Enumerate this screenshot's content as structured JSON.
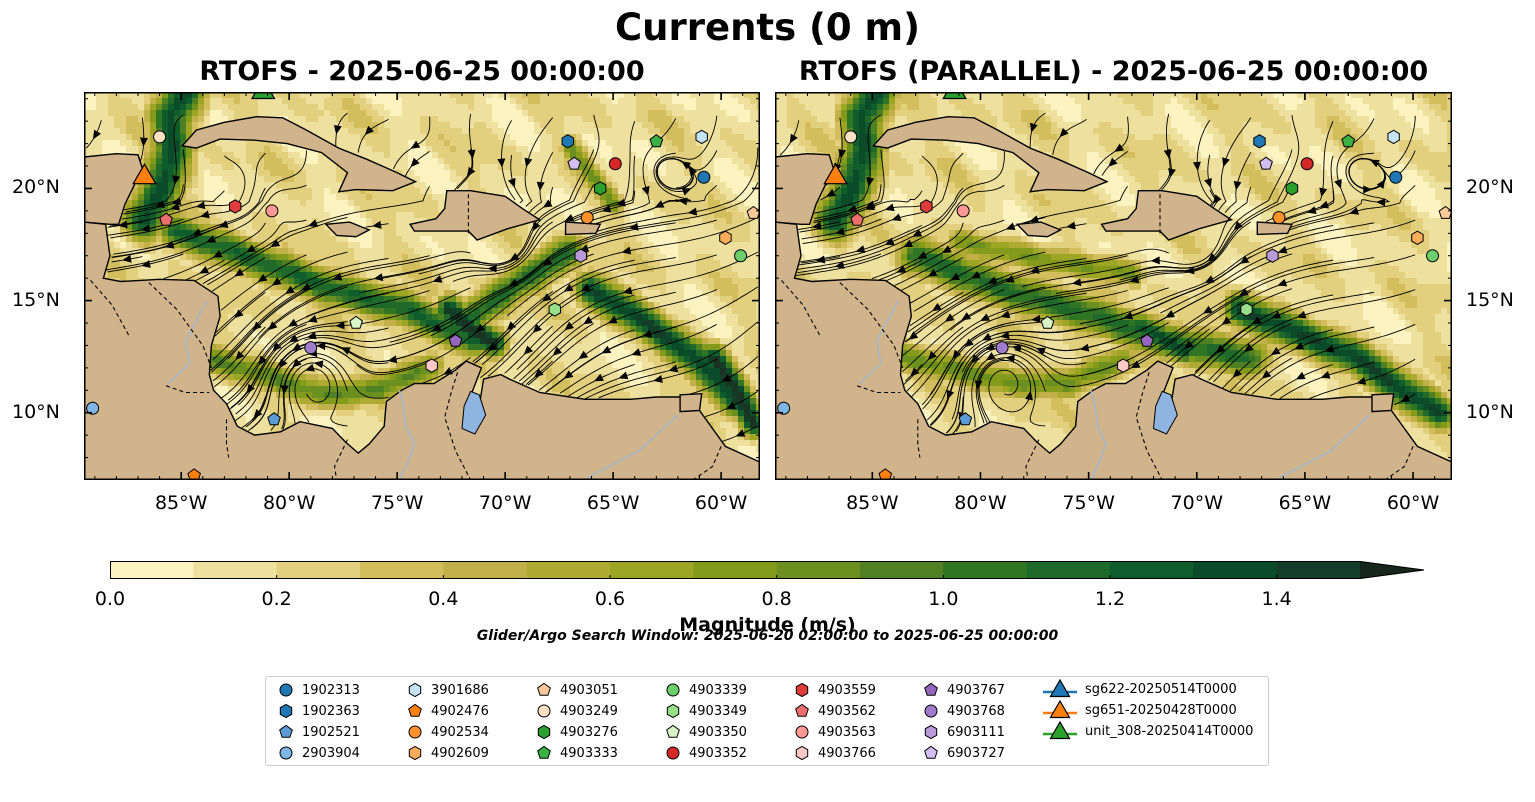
{
  "title": "Currents (0 m)",
  "panels": [
    {
      "title": "RTOFS - 2025-06-25 00:00:00"
    },
    {
      "title": "RTOFS (PARALLEL) - 2025-06-25 00:00:00"
    }
  ],
  "axes": {
    "lon_ticks": [
      "85°W",
      "80°W",
      "75°W",
      "70°W",
      "65°W",
      "60°W"
    ],
    "lat_ticks": [
      "20°N",
      "15°N",
      "10°N"
    ],
    "lon_range": [
      -89.5,
      -58.2
    ],
    "lat_range": [
      7,
      24.3
    ]
  },
  "colors": {
    "land": "#d2b48c",
    "lake": "#90b4e0",
    "river": "#a3b8cc",
    "streamline": "#000000",
    "colormap": [
      "#fcf3c0",
      "#eee1a0",
      "#e2d07e",
      "#d2be5d",
      "#c2b14a",
      "#aeaa32",
      "#9ca624",
      "#839a1a",
      "#6b9020",
      "#4f8023",
      "#2f7523",
      "#1f6a2a",
      "#0f5c2d",
      "#0c4b2a",
      "#143d28",
      "#1c3222",
      "#16261a"
    ]
  },
  "colorbar": {
    "label": "Magnitude (m/s)",
    "ticks": [
      "0.0",
      "0.2",
      "0.4",
      "0.6",
      "0.8",
      "1.0",
      "1.2",
      "1.4"
    ],
    "min": 0.0,
    "max": 1.5,
    "step": 0.1,
    "extend": "max"
  },
  "search_window": "Glider/Argo Search Window: 2025-06-20 02:00:00 to 2025-06-25 00:00:00",
  "legend": {
    "columns": [
      [
        {
          "label": "1902313",
          "marker": "circle",
          "color": "#1f77b4"
        },
        {
          "label": "1902363",
          "marker": "hexagon",
          "color": "#1f77b4"
        },
        {
          "label": "1902521",
          "marker": "pentagon",
          "color": "#5b9bd5"
        },
        {
          "label": "2903904",
          "marker": "circle",
          "color": "#7fb6e6"
        }
      ],
      [
        {
          "label": "3901686",
          "marker": "hexagon",
          "color": "#c6e2f5"
        },
        {
          "label": "4902476",
          "marker": "pentagon",
          "color": "#ff7f0e"
        },
        {
          "label": "4902534",
          "marker": "circle",
          "color": "#ff922b"
        },
        {
          "label": "4902609",
          "marker": "hexagon",
          "color": "#ffad5a"
        }
      ],
      [
        {
          "label": "4903051",
          "marker": "pentagon",
          "color": "#ffc999"
        },
        {
          "label": "4903249",
          "marker": "circle",
          "color": "#ffe2c4"
        },
        {
          "label": "4903276",
          "marker": "hexagon",
          "color": "#2ca02c"
        },
        {
          "label": "4903333",
          "marker": "pentagon",
          "color": "#3cb043"
        }
      ],
      [
        {
          "label": "4903339",
          "marker": "circle",
          "color": "#6ccf6c"
        },
        {
          "label": "4903349",
          "marker": "hexagon",
          "color": "#98df8a"
        },
        {
          "label": "4903350",
          "marker": "pentagon",
          "color": "#d8f5c8"
        },
        {
          "label": "4903352",
          "marker": "circle",
          "color": "#d62728"
        }
      ],
      [
        {
          "label": "4903559",
          "marker": "hexagon",
          "color": "#e03c3c"
        },
        {
          "label": "4903562",
          "marker": "pentagon",
          "color": "#ee6d6d"
        },
        {
          "label": "4903563",
          "marker": "circle",
          "color": "#ff9896"
        },
        {
          "label": "4903766",
          "marker": "hexagon",
          "color": "#ffc8c8"
        }
      ],
      [
        {
          "label": "4903767",
          "marker": "pentagon",
          "color": "#9467bd"
        },
        {
          "label": "4903768",
          "marker": "circle",
          "color": "#a27ccc"
        },
        {
          "label": "6903111",
          "marker": "hexagon",
          "color": "#b89ad8"
        },
        {
          "label": "6903727",
          "marker": "pentagon",
          "color": "#d4bdf0"
        }
      ],
      [
        {
          "label": "sg622-20250514T0000",
          "marker": "triangle",
          "color": "#1f77b4"
        },
        {
          "label": "sg651-20250428T0000",
          "marker": "triangle",
          "color": "#ff7f0e"
        },
        {
          "label": "unit_308-20250414T0000",
          "marker": "triangle",
          "color": "#2ca02c"
        }
      ]
    ]
  },
  "floats": [
    {
      "id": "1902313",
      "lon": -60.8,
      "lat": 20.5
    },
    {
      "id": "1902363",
      "lon": -67.1,
      "lat": 22.1
    },
    {
      "id": "1902521",
      "lon": -80.7,
      "lat": 9.7
    },
    {
      "id": "2903904",
      "lon": -89.1,
      "lat": 10.2
    },
    {
      "id": "3901686",
      "lon": -60.9,
      "lat": 22.3
    },
    {
      "id": "4902476",
      "lon": -84.4,
      "lat": 7.2
    },
    {
      "id": "4902534",
      "lon": -66.2,
      "lat": 18.7
    },
    {
      "id": "4902609",
      "lon": -59.8,
      "lat": 17.8
    },
    {
      "id": "4903051",
      "lon": -58.5,
      "lat": 18.9
    },
    {
      "id": "4903249",
      "lon": -86.0,
      "lat": 22.3
    },
    {
      "id": "4903276",
      "lon": -65.6,
      "lat": 20.0
    },
    {
      "id": "4903333",
      "lon": -63.0,
      "lat": 22.1
    },
    {
      "id": "4903339",
      "lon": -59.1,
      "lat": 17.0
    },
    {
      "id": "4903349",
      "lon": -67.7,
      "lat": 14.6
    },
    {
      "id": "4903350",
      "lon": -76.9,
      "lat": 14.0
    },
    {
      "id": "4903352",
      "lon": -64.9,
      "lat": 21.1
    },
    {
      "id": "4903559",
      "lon": -82.5,
      "lat": 19.2
    },
    {
      "id": "4903562",
      "lon": -85.7,
      "lat": 18.6
    },
    {
      "id": "4903563",
      "lon": -80.8,
      "lat": 19.0
    },
    {
      "id": "4903766",
      "lon": -73.4,
      "lat": 12.1
    },
    {
      "id": "4903767",
      "lon": -72.3,
      "lat": 13.2
    },
    {
      "id": "4903768",
      "lon": -79.0,
      "lat": 12.9
    },
    {
      "id": "6903111",
      "lon": -66.5,
      "lat": 17.0
    },
    {
      "id": "6903727",
      "lon": -66.8,
      "lat": 21.1
    }
  ],
  "gliders": [
    {
      "id": "sg651-20250428T0000",
      "lon": -86.7,
      "lat": 20.5
    },
    {
      "id": "unit_308-20250414T0000",
      "lon": -81.2,
      "lat": 24.3
    }
  ]
}
